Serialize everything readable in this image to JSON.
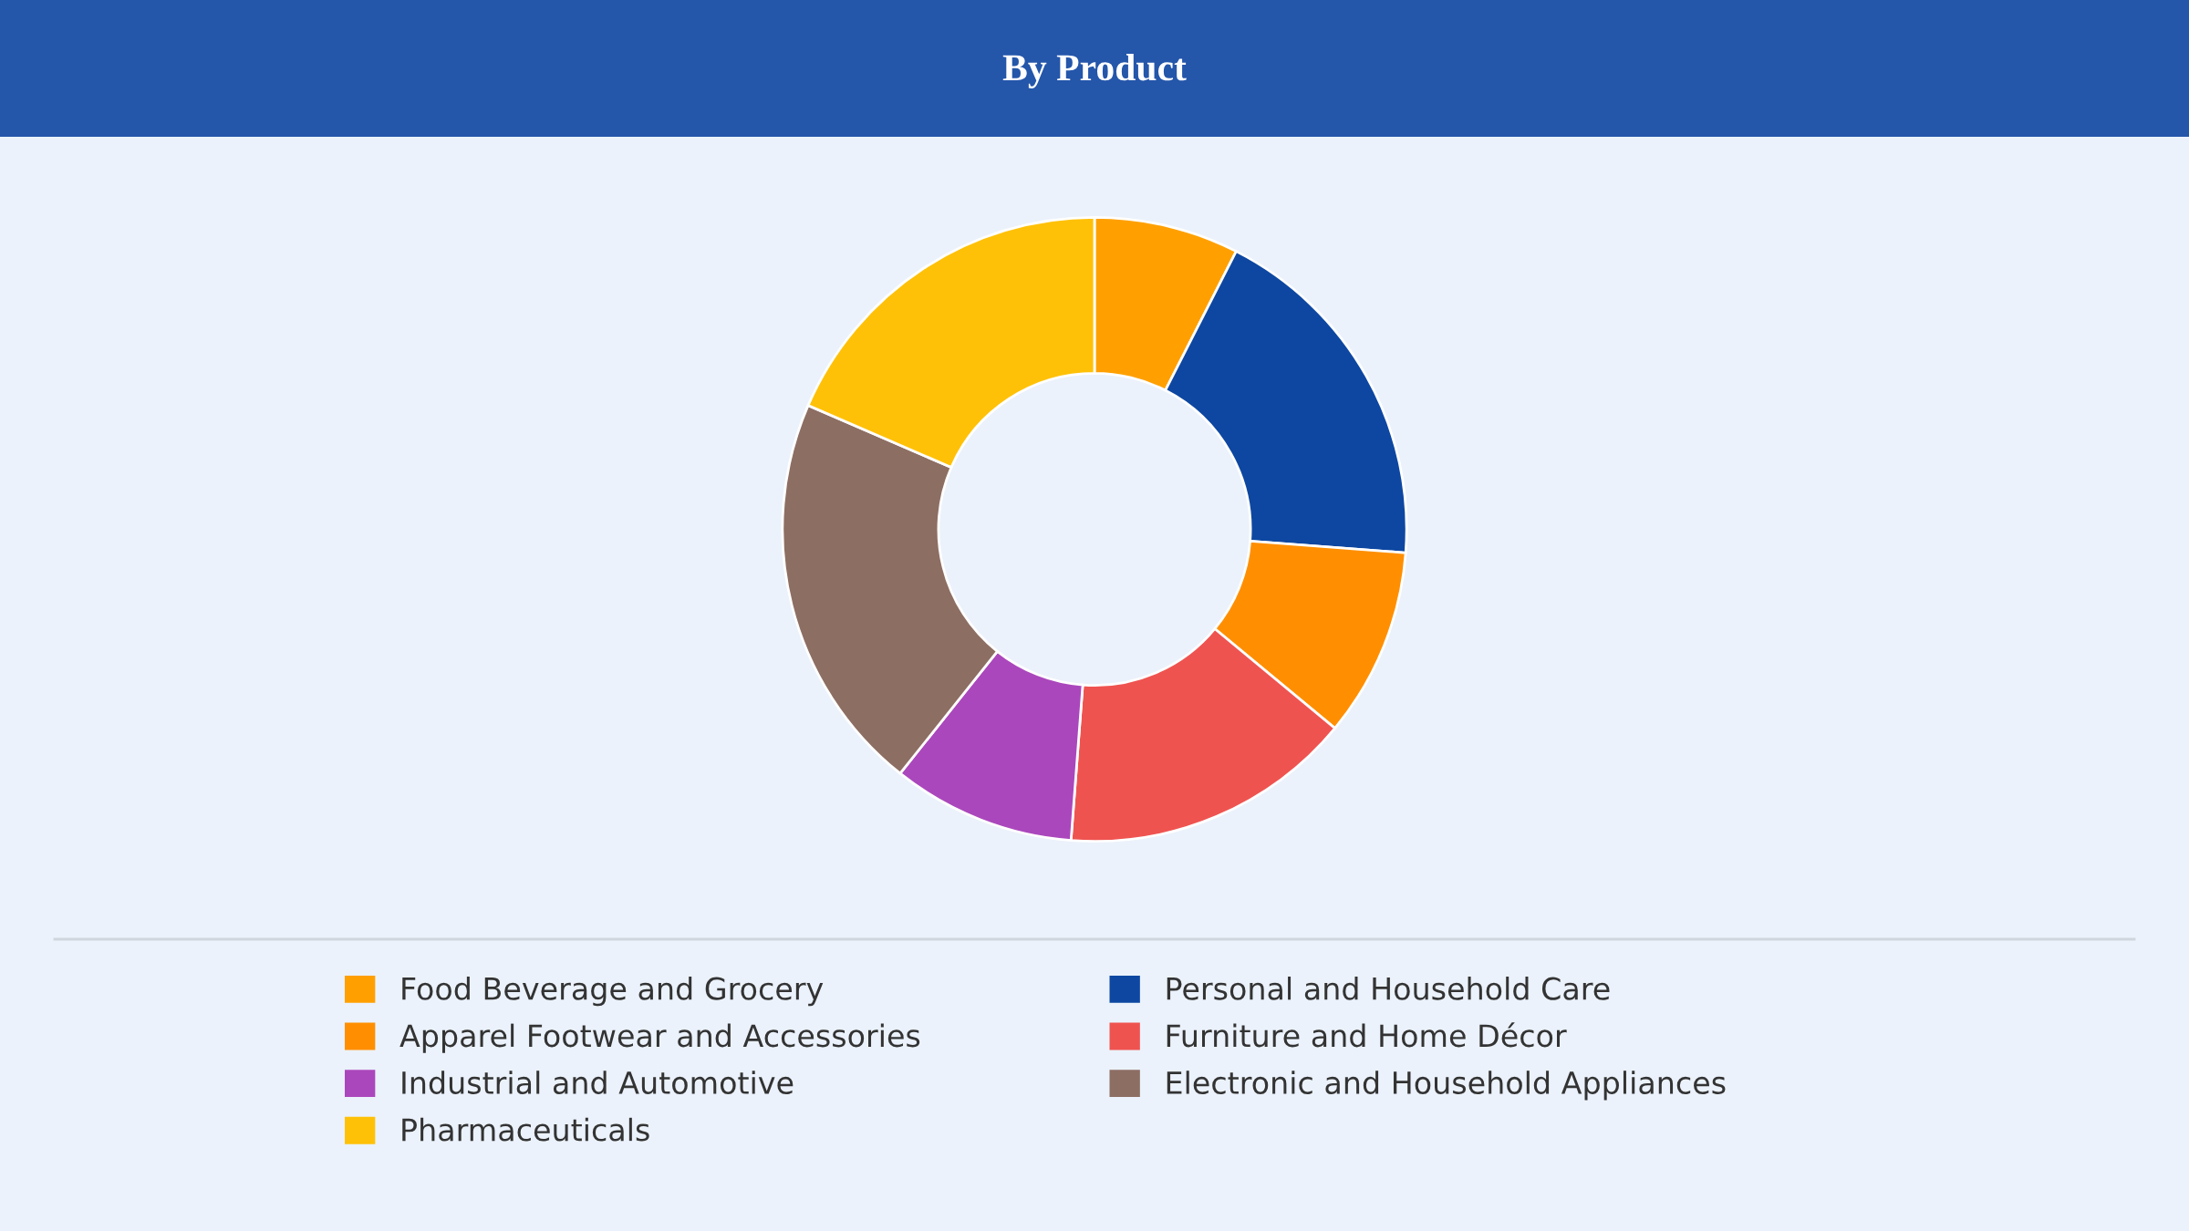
{
  "chart_data": {
    "type": "donut",
    "title": "By Product",
    "categories": [
      "Food Beverage and Grocery",
      "Personal and Household Care",
      "Apparel Footwear and Accessories",
      "Furniture and Home Décor",
      "Industrial and Automotive",
      "Electronic and Household Appliances",
      "Pharmaceuticals"
    ],
    "values": [
      7.5,
      18.7,
      9.8,
      15.2,
      9.5,
      20.8,
      18.5
    ],
    "colors": [
      "#ffa000",
      "#0d47a1",
      "#ff8f00",
      "#ef5350",
      "#ab47bc",
      "#8d6e63",
      "#ffc107"
    ],
    "legend": "bottom"
  }
}
